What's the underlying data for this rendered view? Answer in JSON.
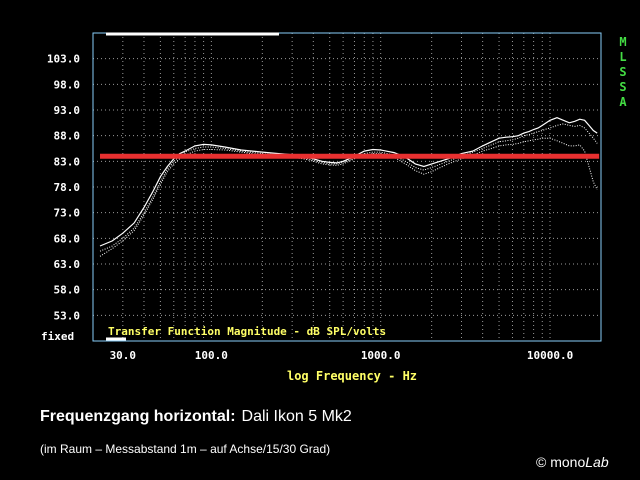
{
  "chart_data": {
    "type": "line",
    "title": "Transfer Function Magnitude - dB SPL/volts",
    "xlabel": "log Frequency - Hz",
    "ylabel": "",
    "x_scale": "log",
    "xlim": [
      20,
      20000
    ],
    "ylim": [
      48,
      108
    ],
    "x_ticks": [
      {
        "value": 30,
        "label": "30.0"
      },
      {
        "value": 100,
        "label": "100.0"
      },
      {
        "value": 1000,
        "label": "1000.0"
      },
      {
        "value": 10000,
        "label": "10000.0"
      }
    ],
    "y_ticks": [
      {
        "value": 103,
        "label": "103.0"
      },
      {
        "value": 98,
        "label": "98.0"
      },
      {
        "value": 93,
        "label": "93.0"
      },
      {
        "value": 88,
        "label": "88.0"
      },
      {
        "value": 83,
        "label": "83.0"
      },
      {
        "value": 78,
        "label": "78.0"
      },
      {
        "value": 73,
        "label": "73.0"
      },
      {
        "value": 68,
        "label": "68.0"
      },
      {
        "value": 63,
        "label": "63.0"
      },
      {
        "value": 58,
        "label": "58.0"
      },
      {
        "value": 53,
        "label": "53.0"
      }
    ],
    "ylim_mode": "fixed",
    "grid": true,
    "side_label": "MLSSA",
    "colors": {
      "frame": "#87cefa",
      "grid": "#9a9a9a",
      "axis_text": "#ffffff",
      "title_text": "#ffff66",
      "side_label": "#44dd44",
      "reference": "#e83030",
      "curve": "#ffffff"
    },
    "series": [
      {
        "style": "solid",
        "x": [
          22,
          26,
          30,
          35,
          40,
          45,
          50,
          55,
          60,
          65,
          70,
          80,
          90,
          100,
          120,
          150,
          200,
          250,
          300,
          350,
          400,
          450,
          500,
          550,
          600,
          650,
          700,
          800,
          900,
          1000,
          1200,
          1400,
          1600,
          1800,
          2000,
          2500,
          3000,
          3500,
          4000,
          4500,
          5000,
          5500,
          6000,
          6500,
          7000,
          7500,
          8000,
          8500,
          9000,
          9500,
          10000,
          11000,
          12000,
          13000,
          14000,
          15000,
          16000,
          17000,
          18000,
          19000
        ],
        "y": [
          66.5,
          67.5,
          69,
          71,
          74,
          77,
          80,
          82,
          83.5,
          84.5,
          85,
          86,
          86.3,
          86.2,
          85.8,
          85.2,
          84.8,
          84.5,
          84.3,
          84,
          83.5,
          83,
          82.8,
          82.7,
          83,
          83.5,
          84,
          85,
          85.3,
          85.2,
          84.7,
          83.8,
          82.5,
          82,
          82.5,
          83.5,
          84.5,
          85,
          86,
          86.8,
          87.5,
          87.7,
          87.8,
          88,
          88.5,
          88.8,
          89.2,
          89.5,
          90,
          90.5,
          91,
          91.5,
          91,
          90.5,
          90.8,
          91.2,
          91,
          90,
          89,
          88.5
        ]
      },
      {
        "style": "dotted",
        "x": [
          22,
          26,
          30,
          35,
          40,
          45,
          50,
          55,
          60,
          65,
          70,
          80,
          90,
          100,
          120,
          150,
          200,
          250,
          300,
          350,
          400,
          450,
          500,
          550,
          600,
          650,
          700,
          800,
          900,
          1000,
          1200,
          1400,
          1600,
          1800,
          2000,
          2500,
          3000,
          3500,
          4000,
          4500,
          5000,
          5500,
          6000,
          6500,
          7000,
          7500,
          8000,
          8500,
          9000,
          9500,
          10000,
          11000,
          12000,
          13000,
          14000,
          15000,
          16000,
          17000,
          18000,
          19000
        ],
        "y": [
          65.5,
          66.5,
          68,
          70,
          73,
          76,
          79,
          81.5,
          83,
          84,
          84.8,
          85.5,
          85.8,
          85.8,
          85.5,
          85,
          84.5,
          84.2,
          84,
          83.7,
          83.2,
          82.8,
          82.5,
          82.5,
          82.8,
          83.2,
          83.8,
          84.5,
          84.8,
          84.8,
          84.2,
          83,
          81.8,
          81.3,
          81.8,
          83,
          84,
          84.8,
          85.5,
          86.2,
          86.8,
          87,
          87.2,
          87.5,
          88,
          88.2,
          88.5,
          88.8,
          89,
          89.3,
          89.5,
          90,
          90.3,
          90,
          89.8,
          90,
          89.5,
          88.5,
          87.5,
          86.5
        ]
      },
      {
        "style": "dotted",
        "x": [
          22,
          26,
          30,
          35,
          40,
          45,
          50,
          55,
          60,
          65,
          70,
          80,
          90,
          100,
          120,
          150,
          200,
          250,
          300,
          350,
          400,
          450,
          500,
          550,
          600,
          650,
          700,
          800,
          900,
          1000,
          1200,
          1400,
          1600,
          1800,
          2000,
          2500,
          3000,
          3500,
          4000,
          4500,
          5000,
          5500,
          6000,
          6500,
          7000,
          7500,
          8000,
          8500,
          9000,
          9500,
          10000,
          11000,
          12000,
          13000,
          14000,
          15000,
          16000,
          17000,
          18000,
          19000
        ],
        "y": [
          64.5,
          66,
          67.5,
          69.5,
          72.5,
          75.5,
          78.5,
          81,
          82.5,
          83.5,
          84.2,
          85,
          85.3,
          85.3,
          85.2,
          84.8,
          84.2,
          84,
          83.8,
          83.5,
          83,
          82.5,
          82.3,
          82.2,
          82.5,
          83,
          83.5,
          84.2,
          84.5,
          84.5,
          83.8,
          82.5,
          81.2,
          80.5,
          81,
          82.5,
          83.5,
          84.2,
          85,
          85.5,
          86,
          86.2,
          86.3,
          86.5,
          86.8,
          87,
          87.2,
          87.3,
          87.5,
          87.5,
          87.5,
          87,
          86.5,
          86,
          86,
          86.2,
          85,
          82,
          79,
          77.5
        ]
      }
    ],
    "reference_line": {
      "y": 84,
      "x_range": [
        22,
        19500
      ]
    }
  },
  "caption": {
    "bold": "Frequenzgang horizontal:",
    "rest": "Dali Ikon 5 Mk2",
    "sub": "(im Raum – Messabstand 1m – auf Achse/15/30 Grad)"
  },
  "logo": {
    "symbol": "©",
    "text_a": "mono",
    "text_b": "Lab"
  }
}
